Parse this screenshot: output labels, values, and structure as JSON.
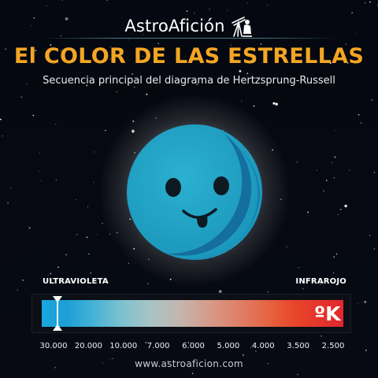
{
  "brand": {
    "name": "AstroAfición",
    "icon": "telescope-astronomer-icon"
  },
  "title": "El COLOR DE LAS ESTRELLAS",
  "subtitle": "Secuencia principal del diagrama de Hertzsprung-Russell",
  "star": {
    "color": "#1ea0c2",
    "expression": "smiling-face"
  },
  "scale": {
    "left_label": "ULTRAVIOLETA",
    "right_label": "INFRAROJO",
    "unit": "ºK",
    "ticks": [
      "30.000",
      "20.000",
      "10.000",
      "7.000",
      "6.000",
      "5.000",
      "4.000",
      "3.500",
      "2.500"
    ],
    "selected_value": "30.000",
    "gradient_colors": [
      "#1aa7df",
      "#a8c4c4",
      "#e6613f",
      "#e2262c"
    ]
  },
  "website": "www.astroaficion.com"
}
